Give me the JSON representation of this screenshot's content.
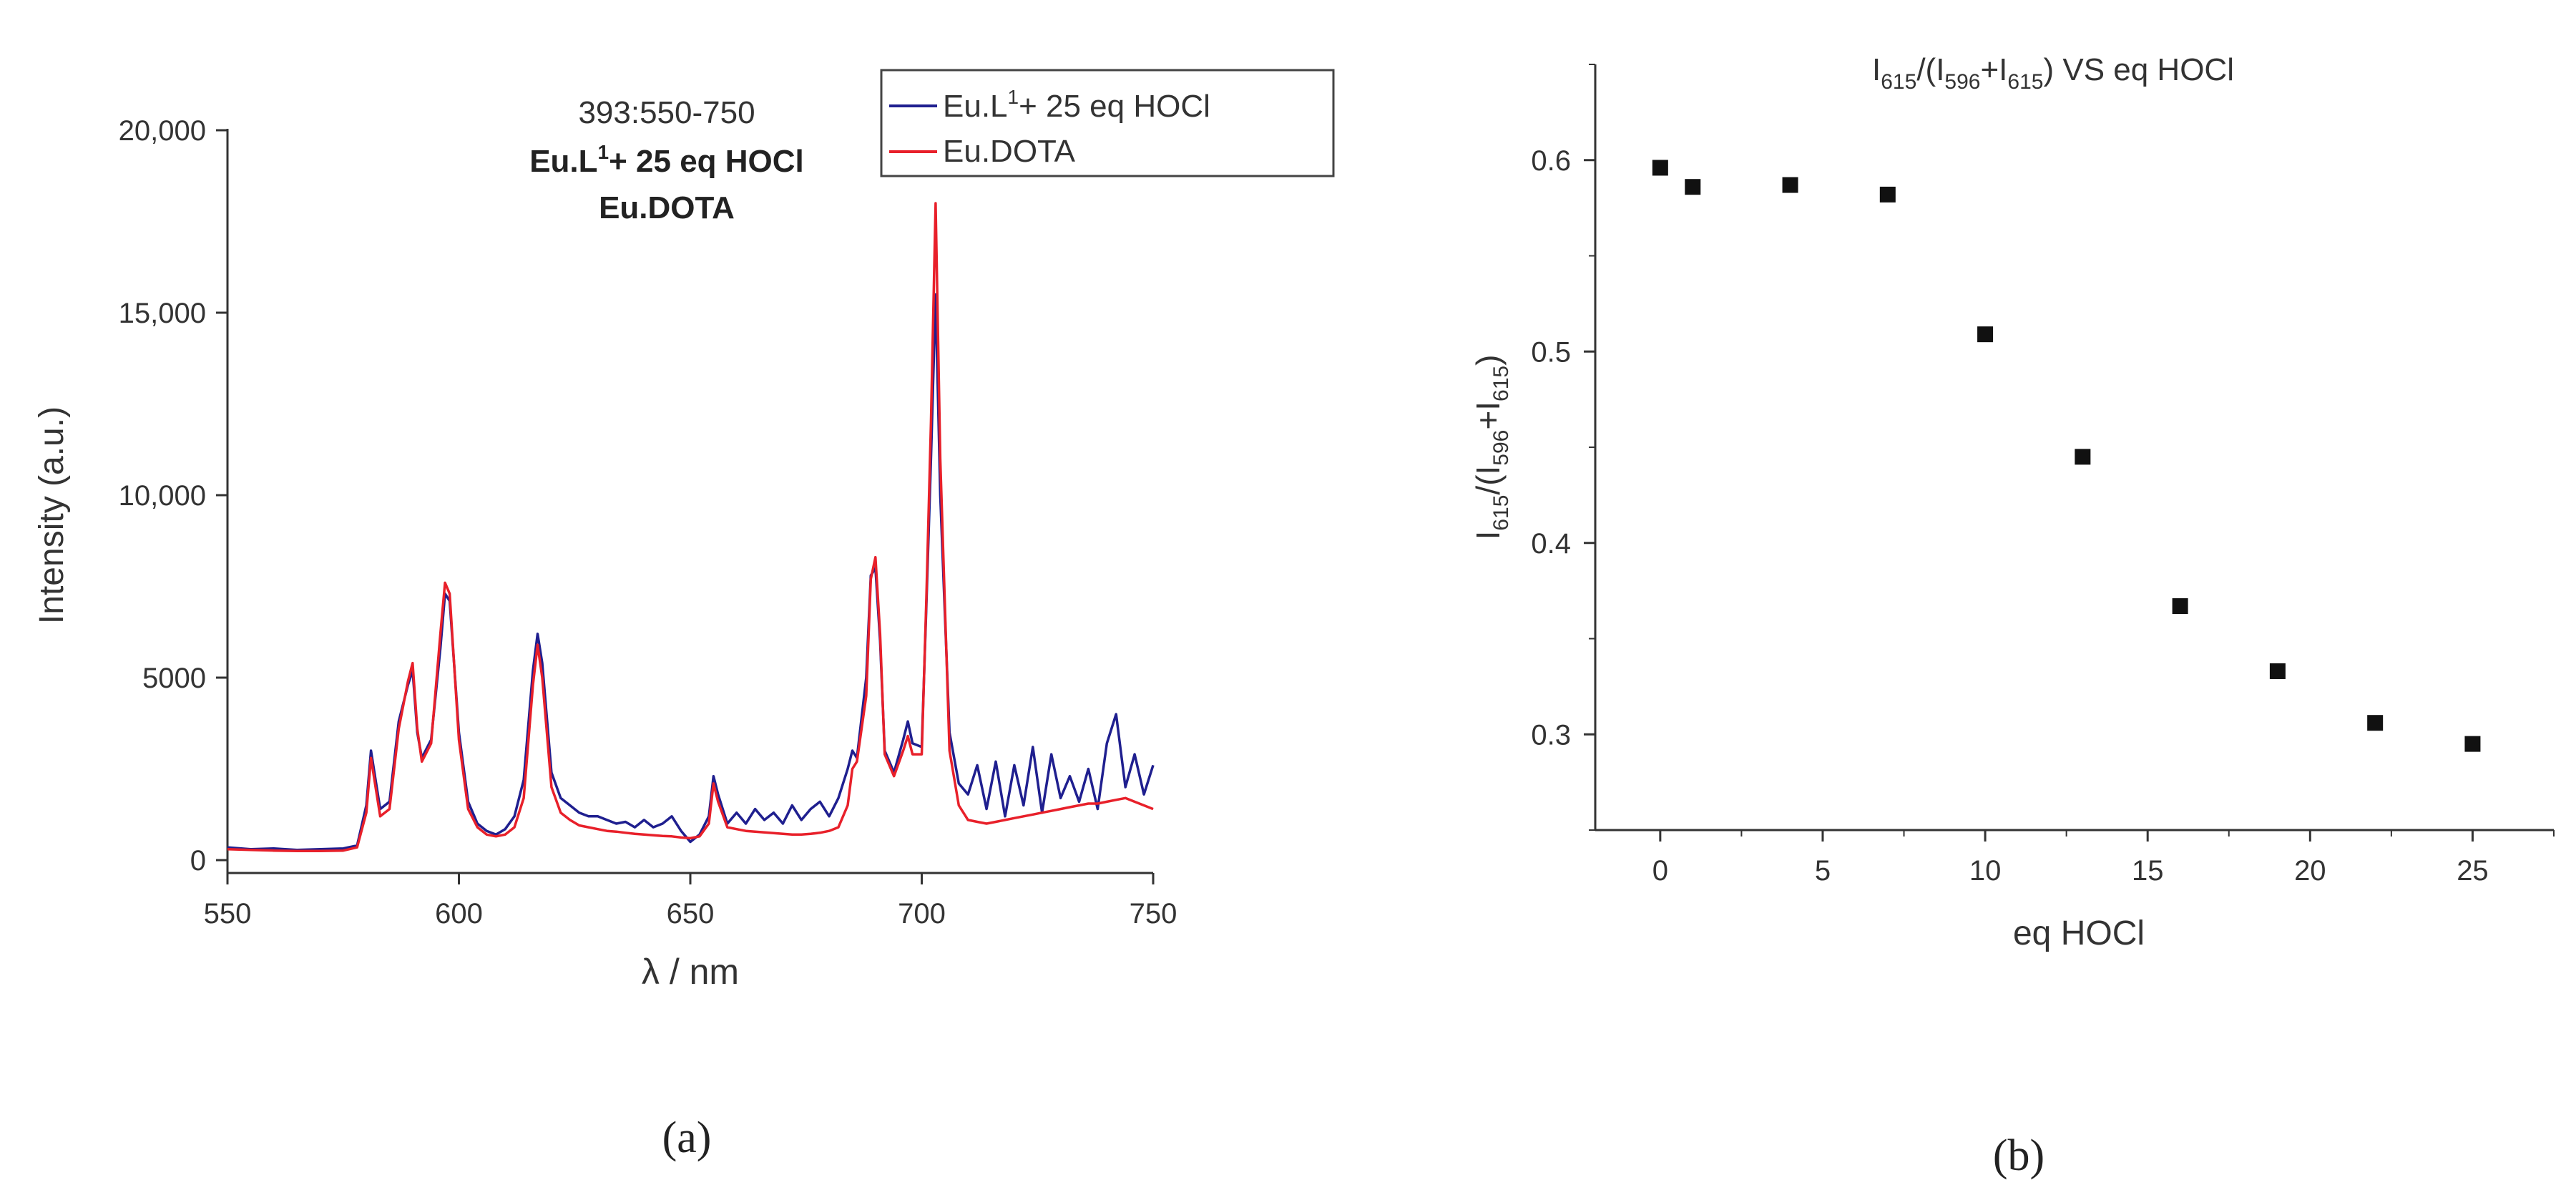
{
  "colors": {
    "blue": "#1f1f8f",
    "red": "#e8202a",
    "axis": "#333333",
    "text": "#333333"
  },
  "panel_a": {
    "caption": "(a)",
    "legend_blue_prefix": "Eu.L",
    "legend_blue_sup": "1",
    "legend_blue_suffix": "+ 25 eq HOCl",
    "legend_red": "Eu.DOTA"
  },
  "panel_b": {
    "caption": "(b)"
  },
  "chart_data": [
    {
      "type": "line",
      "title": "393:550-750",
      "subtitle_line1_prefix": "Eu.L",
      "subtitle_line1_sup": "1",
      "subtitle_line1_suffix": "+ 25 eq HOCl",
      "subtitle_line2": "Eu.DOTA",
      "xlabel": "λ / nm",
      "ylabel": "Intensity (a.u.)",
      "xlim": [
        550,
        750
      ],
      "ylim": [
        0,
        20000
      ],
      "xticks": [
        550,
        600,
        650,
        700,
        750
      ],
      "ytick_values": [
        0,
        5000,
        10000,
        15000,
        20000
      ],
      "ytick_labels": [
        "0",
        "5000",
        "10,000",
        "15,000",
        "20,000"
      ],
      "grid": false,
      "legend_position": "top-right",
      "series": [
        {
          "name": "Eu.L1+ 25 eq HOCl",
          "color": "#1f1f8f",
          "x": [
            550,
            555,
            560,
            565,
            570,
            575,
            578,
            580,
            581,
            582,
            583,
            585,
            587,
            589,
            590,
            591,
            592,
            594,
            596,
            597,
            598,
            600,
            602,
            604,
            606,
            608,
            610,
            612,
            614,
            616,
            617,
            618,
            620,
            622,
            624,
            626,
            628,
            630,
            632,
            634,
            636,
            638,
            640,
            642,
            644,
            646,
            648,
            650,
            652,
            654,
            655,
            656,
            658,
            660,
            662,
            664,
            666,
            668,
            670,
            672,
            674,
            676,
            678,
            680,
            682,
            684,
            685,
            686,
            688,
            689,
            690,
            691,
            692,
            694,
            696,
            697,
            698,
            700,
            701,
            702,
            703,
            704,
            706,
            708,
            710,
            712,
            714,
            716,
            718,
            720,
            722,
            724,
            726,
            728,
            730,
            732,
            734,
            736,
            738,
            740,
            742,
            744,
            746,
            748,
            750
          ],
          "y": [
            350,
            300,
            320,
            280,
            300,
            320,
            400,
            1500,
            3000,
            2200,
            1400,
            1600,
            3800,
            4800,
            5200,
            3500,
            2800,
            3300,
            5800,
            7300,
            7100,
            3500,
            1600,
            1000,
            800,
            700,
            850,
            1200,
            2200,
            5200,
            6200,
            5400,
            2400,
            1700,
            1500,
            1300,
            1200,
            1200,
            1100,
            1000,
            1050,
            900,
            1100,
            900,
            1000,
            1200,
            800,
            500,
            700,
            1200,
            2300,
            1800,
            1000,
            1300,
            1000,
            1400,
            1100,
            1300,
            1000,
            1500,
            1100,
            1400,
            1600,
            1200,
            1700,
            2500,
            3000,
            2800,
            5000,
            7800,
            8000,
            6000,
            3000,
            2400,
            3300,
            3800,
            3200,
            3100,
            7000,
            11000,
            15500,
            10000,
            3500,
            2100,
            1800,
            2600,
            1400,
            2700,
            1200,
            2600,
            1500,
            3100,
            1300,
            2900,
            1700,
            2300,
            1600,
            2500,
            1400,
            3200,
            4000,
            2000,
            2900,
            1800,
            2600
          ]
        },
        {
          "name": "Eu.DOTA",
          "color": "#e8202a",
          "x": [
            550,
            555,
            560,
            565,
            570,
            575,
            578,
            580,
            581,
            582,
            583,
            585,
            587,
            589,
            590,
            591,
            592,
            594,
            596,
            597,
            598,
            600,
            602,
            604,
            606,
            608,
            610,
            612,
            614,
            616,
            617,
            618,
            620,
            622,
            624,
            626,
            628,
            630,
            632,
            634,
            636,
            638,
            640,
            642,
            644,
            646,
            648,
            650,
            652,
            654,
            655,
            656,
            658,
            660,
            662,
            664,
            666,
            668,
            670,
            672,
            674,
            676,
            678,
            680,
            682,
            684,
            685,
            686,
            688,
            689,
            690,
            691,
            692,
            694,
            696,
            697,
            698,
            700,
            701,
            702,
            703,
            704,
            706,
            708,
            710,
            712,
            714,
            716,
            718,
            720,
            722,
            724,
            726,
            728,
            730,
            732,
            734,
            736,
            738,
            740,
            742,
            744,
            746,
            748,
            750
          ],
          "y": [
            300,
            280,
            260,
            250,
            250,
            260,
            350,
            1300,
            2800,
            2000,
            1200,
            1400,
            3600,
            4900,
            5400,
            3600,
            2700,
            3200,
            6200,
            7600,
            7300,
            3300,
            1400,
            900,
            700,
            650,
            700,
            900,
            1700,
            4800,
            5900,
            5000,
            2000,
            1300,
            1100,
            950,
            900,
            850,
            800,
            780,
            750,
            720,
            700,
            680,
            660,
            650,
            620,
            600,
            650,
            1000,
            2100,
            1600,
            900,
            850,
            800,
            780,
            760,
            740,
            720,
            700,
            700,
            720,
            750,
            800,
            900,
            1500,
            2500,
            2700,
            4500,
            7700,
            8300,
            6200,
            2900,
            2300,
            3000,
            3400,
            2900,
            2900,
            7200,
            12000,
            18000,
            11000,
            3000,
            1500,
            1100,
            1050,
            1000,
            1050,
            1100,
            1150,
            1200,
            1250,
            1300,
            1350,
            1400,
            1450,
            1500,
            1550,
            1550,
            1600,
            1650,
            1700,
            1600,
            1500,
            1400
          ]
        }
      ]
    },
    {
      "type": "scatter",
      "title_I": "I",
      "title_s615": "615",
      "title_mid1": "/(I",
      "title_s596": "596",
      "title_mid2": "+I",
      "title_s615b": "615",
      "title_suffix": ") VS eq HOCl",
      "xlabel": "eq HOCl",
      "ylabel": "I615/(I596+I615)",
      "xlim": [
        -2,
        27.5
      ],
      "ylim": [
        0.25,
        0.65
      ],
      "xticks": [
        0,
        5,
        10,
        15,
        20,
        25
      ],
      "yticks": [
        0.3,
        0.4,
        0.5,
        0.6
      ],
      "ytick_labels": [
        "0.3",
        "0.4",
        "0.5",
        "0.6"
      ],
      "grid": false,
      "x": [
        0,
        1,
        4,
        7,
        10,
        13,
        16,
        19,
        22,
        25
      ],
      "y": [
        0.596,
        0.586,
        0.587,
        0.582,
        0.509,
        0.445,
        0.367,
        0.333,
        0.306,
        0.295
      ]
    }
  ]
}
